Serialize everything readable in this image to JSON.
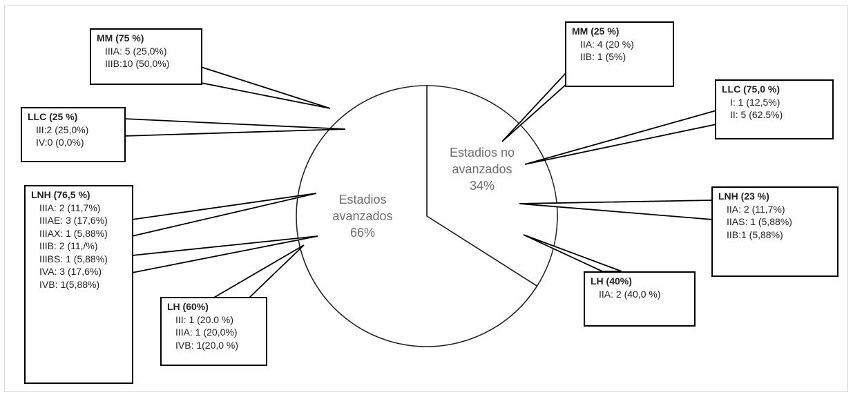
{
  "chart_data": {
    "type": "pie",
    "slices": [
      {
        "label": "Estadios avanzados",
        "label_lines": [
          "Estadios",
          "avanzados"
        ],
        "value": 66,
        "value_label": "66%",
        "color": "#ffffff"
      },
      {
        "label": "Estadios no avanzados",
        "label_lines": [
          "Estadios no",
          "avanzados"
        ],
        "value": 34,
        "value_label": "34%",
        "color": "#ffffff"
      }
    ],
    "text_color": "#6e6e6e",
    "stroke": "#222222"
  },
  "callouts": {
    "mm_adv": {
      "title": "MM (75 %)",
      "lines": [
        "IIIA: 5 (25,0%)",
        "IIIB:10 (50,0%)"
      ]
    },
    "llc_adv": {
      "title": "LLC (25 %)",
      "lines": [
        "III:2 (25,0%)",
        "IV:0 (0,0%)"
      ]
    },
    "lnh_adv": {
      "title": "LNH (76,5 %)",
      "lines": [
        "IIIA: 2 (11,7%)",
        "IIIAE: 3 (17,6%)",
        "IIIAX: 1 (5,88%)",
        "IIIB: 2 (11,/%)",
        "IIIBS: 1 (5,88%)",
        "IVA: 3 (17,6%)",
        "IVB: 1(5,88%)"
      ]
    },
    "lh_adv": {
      "title": "LH (60%)",
      "lines": [
        "III: 1 (20.0 %)",
        "IIIA: 1 (20,0%)",
        "IVB: 1(20,0 %)"
      ]
    },
    "mm_na": {
      "title": "MM (25 %)",
      "lines": [
        "IIA: 4 (20 %)",
        "IIB: 1 (5%)"
      ]
    },
    "llc_na": {
      "title": "LLC (75,0 %)",
      "lines": [
        "I: 1 (12,5%)",
        "II: 5 (62.5%)"
      ]
    },
    "lnh_na": {
      "title": "LNH  (23 %)",
      "lines": [
        "IIA: 2 (11,7%)",
        "IIAS: 1 (5,88%)",
        "IIB:1 (5,88%)"
      ]
    },
    "lh_na": {
      "title": "LH (40%)",
      "lines": [
        "IIA: 2 (40,0 %)"
      ]
    }
  }
}
